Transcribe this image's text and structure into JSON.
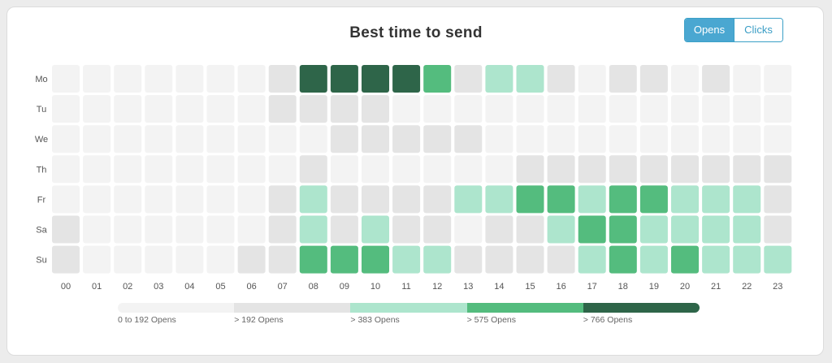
{
  "title": "Best time to send",
  "toggle": {
    "opens_label": "Opens",
    "clicks_label": "Clicks",
    "active": "opens"
  },
  "colors": {
    "level0": "#f3f3f3",
    "level1": "#e4e4e4",
    "level2": "#ade5cd",
    "level3": "#54bc7e",
    "level4": "#2e6549"
  },
  "legend": [
    {
      "label": "0 to 192 Opens",
      "level": 0
    },
    {
      "label": "> 192 Opens",
      "level": 1
    },
    {
      "label": "> 383 Opens",
      "level": 2
    },
    {
      "label": "> 575 Opens",
      "level": 3
    },
    {
      "label": "> 766 Opens",
      "level": 4
    }
  ],
  "chart_data": {
    "type": "heatmap",
    "title": "Best time to send",
    "x": [
      "00",
      "01",
      "02",
      "03",
      "04",
      "05",
      "06",
      "07",
      "08",
      "09",
      "10",
      "11",
      "12",
      "13",
      "14",
      "15",
      "16",
      "17",
      "18",
      "19",
      "20",
      "21",
      "22",
      "23"
    ],
    "y": [
      "Mo",
      "Tu",
      "We",
      "Th",
      "Fr",
      "Sa",
      "Su"
    ],
    "value_levels": [
      "0 to 192 Opens",
      "> 192 Opens",
      "> 383 Opens",
      "> 575 Opens",
      "> 766 Opens"
    ],
    "levels": [
      [
        0,
        0,
        0,
        0,
        0,
        0,
        0,
        1,
        4,
        4,
        4,
        4,
        3,
        1,
        2,
        2,
        1,
        0,
        1,
        1,
        0,
        1,
        0,
        0
      ],
      [
        0,
        0,
        0,
        0,
        0,
        0,
        0,
        1,
        1,
        1,
        1,
        0,
        0,
        0,
        0,
        0,
        0,
        0,
        0,
        0,
        0,
        0,
        0,
        0
      ],
      [
        0,
        0,
        0,
        0,
        0,
        0,
        0,
        0,
        0,
        1,
        1,
        1,
        1,
        1,
        0,
        0,
        0,
        0,
        0,
        0,
        0,
        0,
        0,
        0
      ],
      [
        0,
        0,
        0,
        0,
        0,
        0,
        0,
        0,
        1,
        0,
        0,
        0,
        0,
        0,
        0,
        1,
        1,
        1,
        1,
        1,
        1,
        1,
        1,
        1
      ],
      [
        0,
        0,
        0,
        0,
        0,
        0,
        0,
        1,
        2,
        1,
        1,
        1,
        1,
        2,
        2,
        3,
        3,
        2,
        3,
        3,
        2,
        2,
        2,
        1
      ],
      [
        1,
        0,
        0,
        0,
        0,
        0,
        0,
        1,
        2,
        1,
        2,
        1,
        1,
        0,
        1,
        1,
        2,
        3,
        3,
        2,
        2,
        2,
        2,
        1
      ],
      [
        1,
        0,
        0,
        0,
        0,
        0,
        1,
        1,
        3,
        3,
        3,
        2,
        2,
        1,
        1,
        1,
        1,
        2,
        3,
        2,
        3,
        2,
        2,
        2
      ]
    ]
  }
}
